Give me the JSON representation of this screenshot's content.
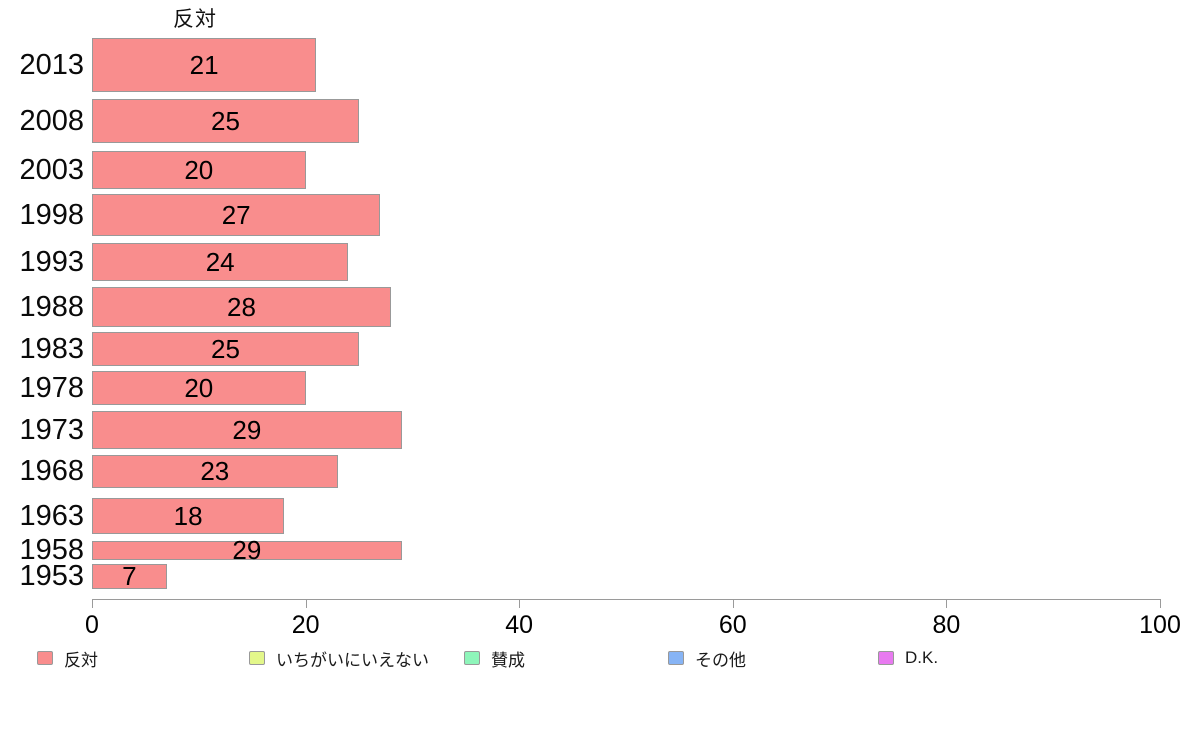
{
  "chart_data": {
    "type": "bar",
    "orientation": "horizontal",
    "title": "反対",
    "categories": [
      "2013",
      "2008",
      "2003",
      "1998",
      "1993",
      "1988",
      "1983",
      "1978",
      "1973",
      "1968",
      "1963",
      "1958",
      "1953"
    ],
    "values": [
      21,
      25,
      20,
      27,
      24,
      28,
      25,
      20,
      29,
      23,
      18,
      29,
      7
    ],
    "xlabel": "",
    "ylabel": "",
    "xlim": [
      0,
      100
    ],
    "x_tick_labels": [
      "0",
      "20",
      "40",
      "60",
      "80",
      "100"
    ],
    "x_tick_values": [
      0,
      20,
      40,
      60,
      80,
      100
    ],
    "grid": false,
    "bar_color": "#f98d8d",
    "bar_border_color": "#999999",
    "axis_color": "#9a9a9a",
    "legend_position": "bottom",
    "legend": [
      {
        "label": "反対",
        "color": "#f98d8d"
      },
      {
        "label": "いちがいにいえない",
        "color": "#e3f78a"
      },
      {
        "label": "賛成",
        "color": "#8ef5ba"
      },
      {
        "label": "その他",
        "color": "#87b4f5"
      },
      {
        "label": "D.K.",
        "color": "#e87af0"
      }
    ]
  }
}
